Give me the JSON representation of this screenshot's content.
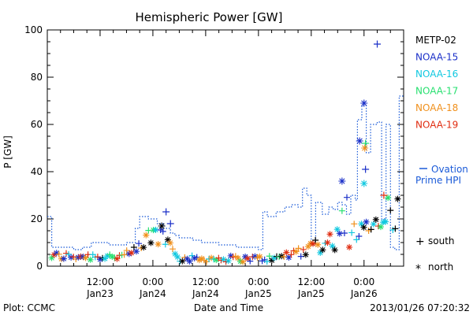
{
  "chart_data": {
    "type": "scatter",
    "title": "Hemispheric Power [GW]",
    "ylabel": "P [GW]",
    "xlabel": "Date and Time",
    "ylim": [
      0,
      100
    ],
    "yticks": [
      0,
      20,
      40,
      60,
      80,
      100
    ],
    "xlim": [
      "2013-01-23T00:00",
      "2013-01-26T09:00"
    ],
    "xticks": [
      {
        "t": "2013-01-23T12:00",
        "time": "12:00",
        "date": "Jan23"
      },
      {
        "t": "2013-01-24T00:00",
        "time": "0:00",
        "date": "Jan24"
      },
      {
        "t": "2013-01-24T12:00",
        "time": "12:00",
        "date": "Jan24"
      },
      {
        "t": "2013-01-25T00:00",
        "time": "0:00",
        "date": "Jan25"
      },
      {
        "t": "2013-01-25T12:00",
        "time": "12:00",
        "date": "Jan25"
      },
      {
        "t": "2013-01-26T00:00",
        "time": "0:00",
        "date": "Jan26"
      }
    ],
    "grid": false,
    "legend_placement": "right",
    "series": [
      {
        "name": "METP-02",
        "color": "#000000"
      },
      {
        "name": "NOAA-15",
        "color": "#1a2fc8"
      },
      {
        "name": "NOAA-16",
        "color": "#10c8e0"
      },
      {
        "name": "NOAA-17",
        "color": "#28e070"
      },
      {
        "name": "NOAA-18",
        "color": "#f0901c"
      },
      {
        "name": "NOAA-19",
        "color": "#e02c10"
      }
    ],
    "ovation": {
      "name_line1": "Ovation",
      "name_line2": "Prime HPI",
      "color": "#1a5ad8",
      "points": [
        [
          "2013-01-23T00:00",
          21
        ],
        [
          "2013-01-23T01:00",
          8
        ],
        [
          "2013-01-23T03:00",
          8
        ],
        [
          "2013-01-23T06:00",
          7
        ],
        [
          "2013-01-23T08:00",
          8
        ],
        [
          "2013-01-23T10:00",
          10
        ],
        [
          "2013-01-23T12:00",
          10
        ],
        [
          "2013-01-23T14:00",
          9
        ],
        [
          "2013-01-23T16:00",
          9
        ],
        [
          "2013-01-23T18:00",
          10
        ],
        [
          "2013-01-23T20:00",
          16
        ],
        [
          "2013-01-23T21:00",
          21
        ],
        [
          "2013-01-23T23:00",
          20
        ],
        [
          "2013-01-24T01:00",
          18
        ],
        [
          "2013-01-24T02:30",
          16
        ],
        [
          "2013-01-24T04:00",
          14
        ],
        [
          "2013-01-24T05:00",
          13
        ],
        [
          "2013-01-24T06:00",
          12
        ],
        [
          "2013-01-24T07:00",
          12
        ],
        [
          "2013-01-24T09:00",
          11
        ],
        [
          "2013-01-24T11:00",
          10
        ],
        [
          "2013-01-24T13:00",
          10
        ],
        [
          "2013-01-24T15:00",
          9
        ],
        [
          "2013-01-24T17:00",
          9
        ],
        [
          "2013-01-24T19:00",
          8
        ],
        [
          "2013-01-24T21:00",
          8
        ],
        [
          "2013-01-25T00:00",
          7
        ],
        [
          "2013-01-25T01:00",
          23
        ],
        [
          "2013-01-25T02:00",
          21
        ],
        [
          "2013-01-25T04:00",
          23
        ],
        [
          "2013-01-25T06:00",
          25
        ],
        [
          "2013-01-25T07:30",
          26
        ],
        [
          "2013-01-25T09:00",
          25
        ],
        [
          "2013-01-25T10:00",
          33
        ],
        [
          "2013-01-25T11:00",
          30
        ],
        [
          "2013-01-25T12:00",
          9
        ],
        [
          "2013-01-25T13:00",
          27
        ],
        [
          "2013-01-25T14:30",
          22
        ],
        [
          "2013-01-25T16:00",
          25
        ],
        [
          "2013-01-25T17:00",
          24
        ],
        [
          "2013-01-25T18:00",
          27
        ],
        [
          "2013-01-25T19:00",
          26
        ],
        [
          "2013-01-25T20:00",
          22
        ],
        [
          "2013-01-25T21:00",
          30
        ],
        [
          "2013-01-25T22:00",
          28
        ],
        [
          "2013-01-25T22:30",
          62
        ],
        [
          "2013-01-25T23:30",
          68
        ],
        [
          "2013-01-26T00:30",
          48
        ],
        [
          "2013-01-26T01:30",
          60
        ],
        [
          "2013-01-26T03:00",
          61
        ],
        [
          "2013-01-26T04:00",
          20
        ],
        [
          "2013-01-26T05:00",
          60
        ],
        [
          "2013-01-26T06:00",
          8
        ],
        [
          "2013-01-26T07:00",
          7
        ],
        [
          "2013-01-26T08:00",
          72
        ]
      ]
    },
    "markers": {
      "south_symbol": "+",
      "south_label": "south",
      "north_symbol": "*",
      "north_label": "north"
    },
    "footer_left": "Plot: CCMC",
    "footer_right": "2013/01/26 07:20:32"
  }
}
